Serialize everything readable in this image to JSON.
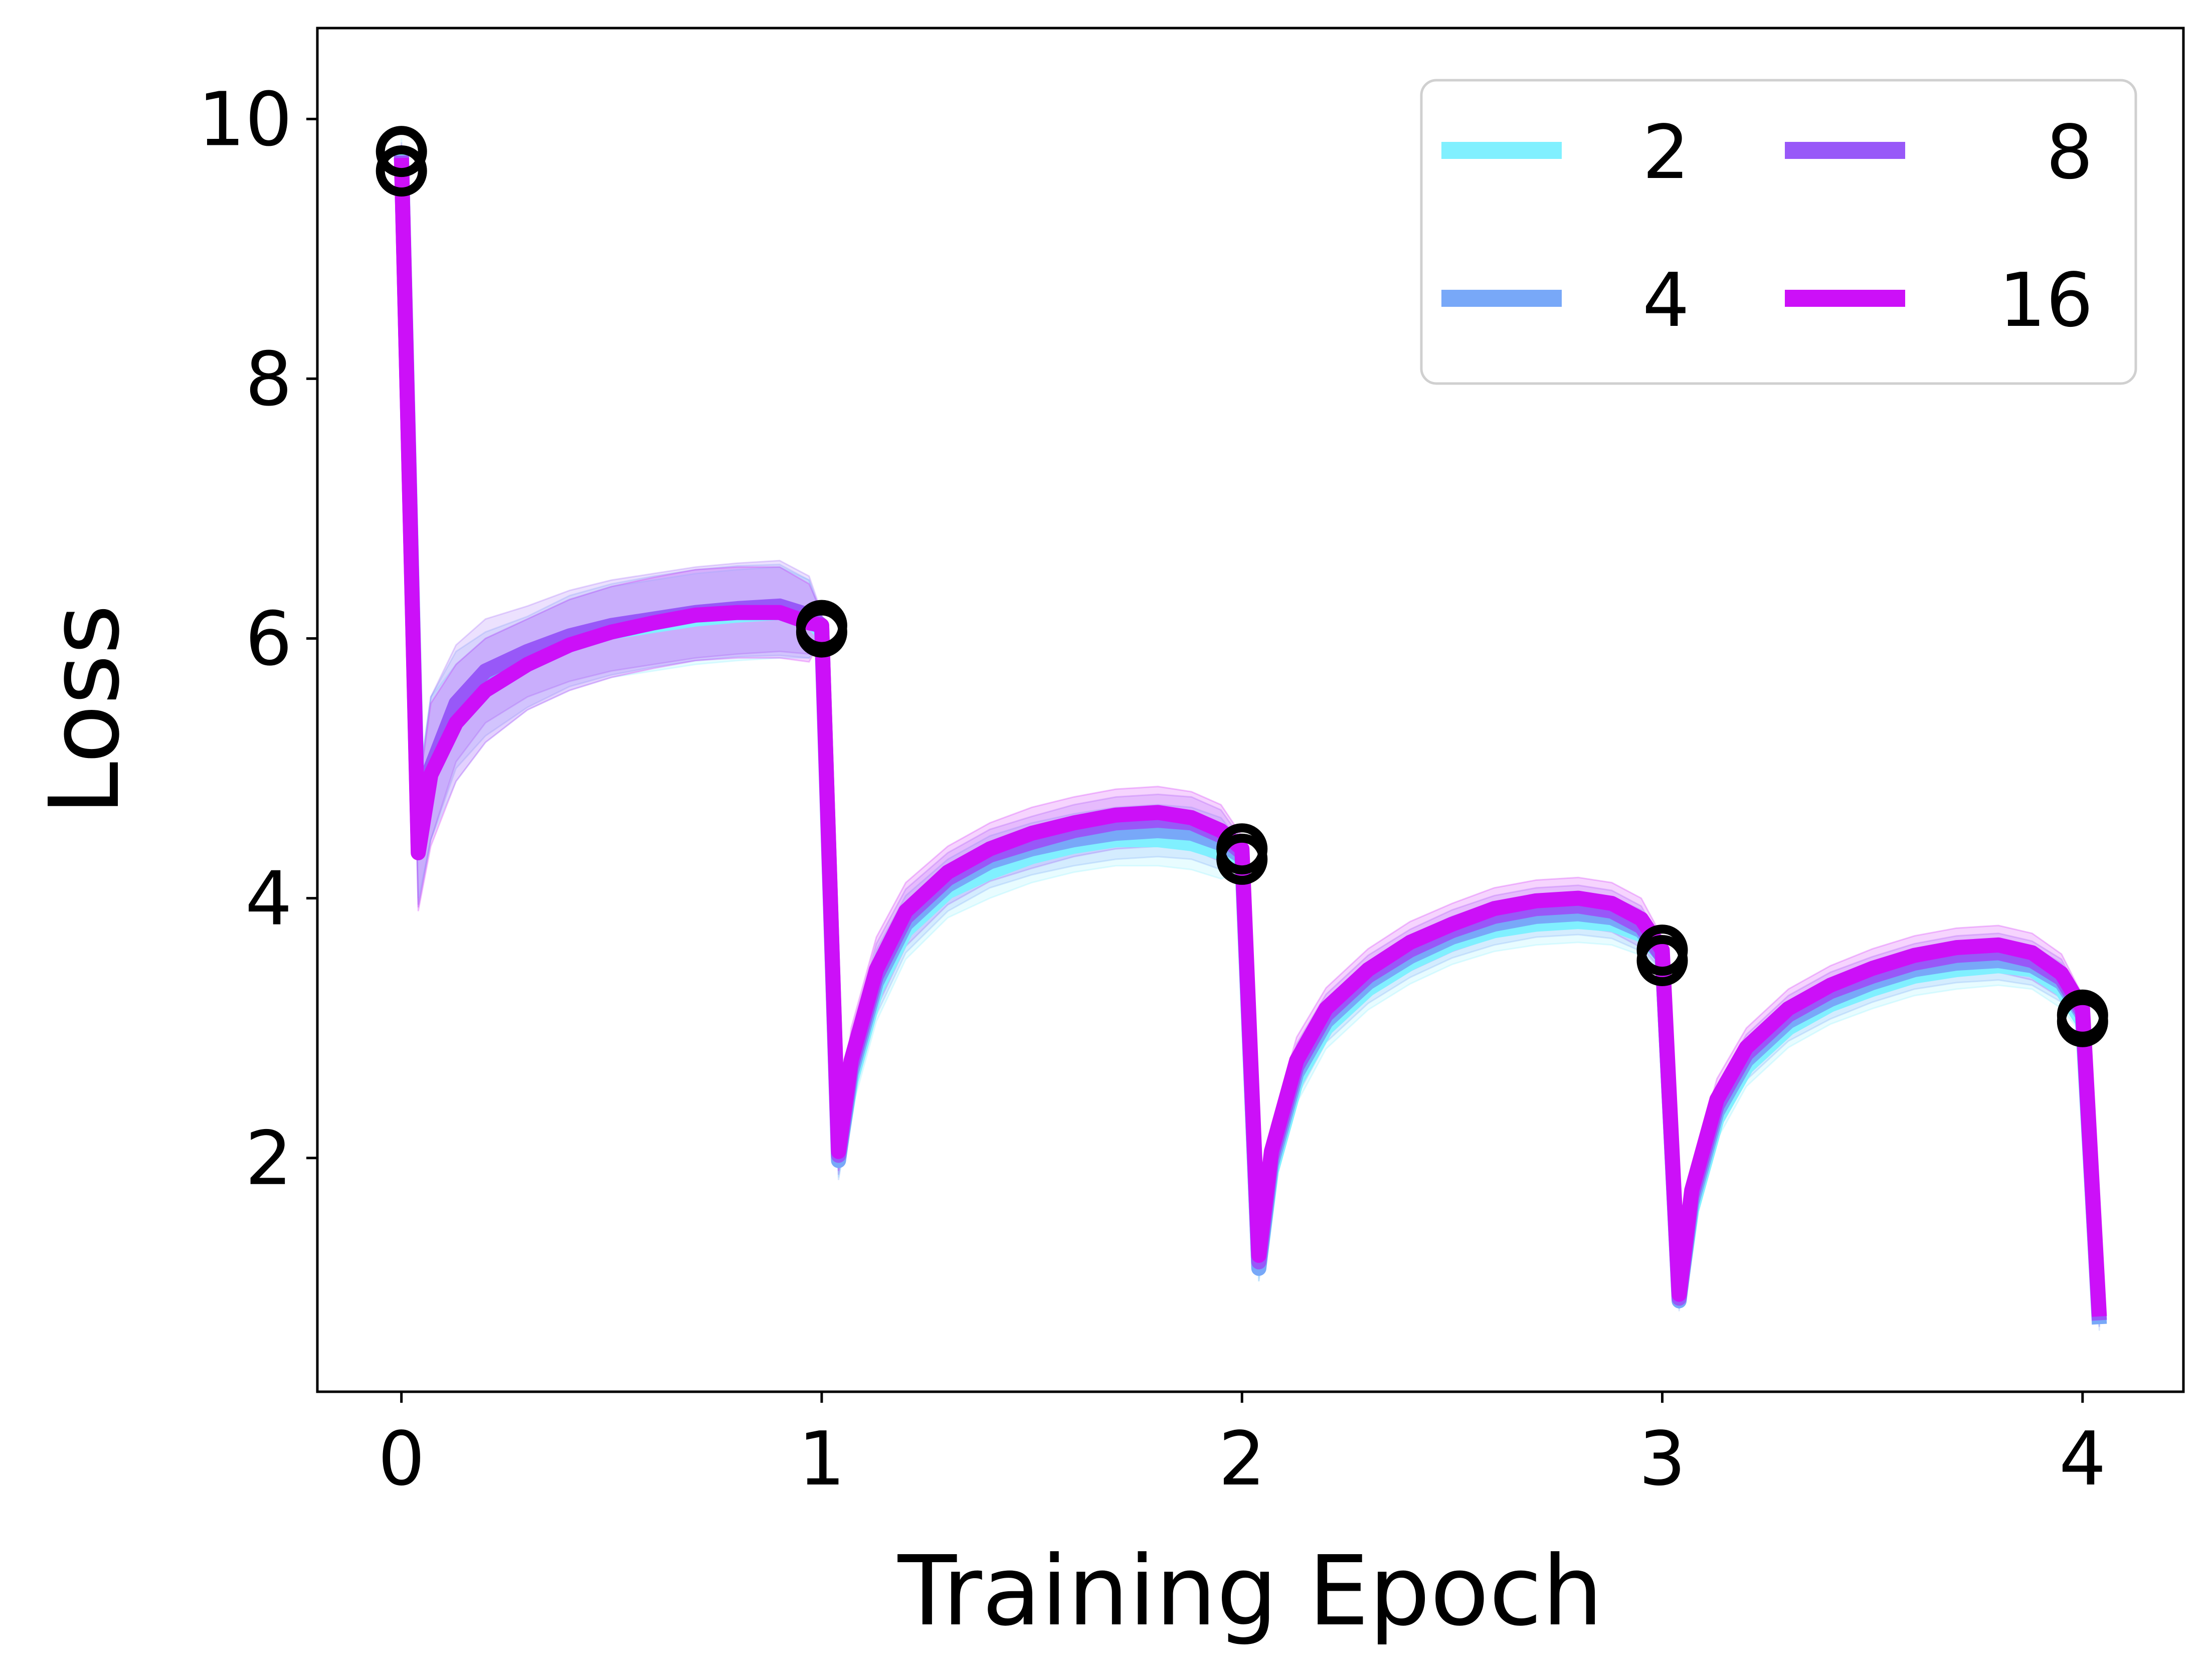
{
  "chart_data": {
    "type": "line",
    "title": "",
    "xlabel": "Training Epoch",
    "ylabel": "Loss",
    "xlim": [
      -0.2,
      4.24
    ],
    "ylim": [
      0.2,
      10.7
    ],
    "xticks": [
      0,
      1,
      2,
      3,
      4
    ],
    "yticks": [
      2,
      4,
      6,
      8,
      10
    ],
    "grid": false,
    "legend": {
      "placement": "top-right",
      "columns": 2
    },
    "x": [
      0,
      0.04,
      0.07,
      0.13,
      0.2,
      0.3,
      0.4,
      0.5,
      0.6,
      0.7,
      0.8,
      0.9,
      0.97,
      1.0,
      1.04,
      1.07,
      1.13,
      1.2,
      1.3,
      1.4,
      1.5,
      1.6,
      1.7,
      1.8,
      1.88,
      1.95,
      2.0,
      2.04,
      2.07,
      2.13,
      2.2,
      2.3,
      2.4,
      2.5,
      2.6,
      2.7,
      2.8,
      2.88,
      2.95,
      3.0,
      3.04,
      3.07,
      3.13,
      3.2,
      3.3,
      3.4,
      3.5,
      3.6,
      3.7,
      3.8,
      3.88,
      3.95,
      4.0,
      4.04
    ],
    "series": [
      {
        "name": "2",
        "color": "#80f0ff",
        "values": [
          9.75,
          4.45,
          5.0,
          5.35,
          5.6,
          5.8,
          5.95,
          6.05,
          6.1,
          6.15,
          6.18,
          6.2,
          6.15,
          6.05,
          2.0,
          2.6,
          3.3,
          3.75,
          4.05,
          4.2,
          4.32,
          4.4,
          4.45,
          4.45,
          4.42,
          4.35,
          4.3,
          1.15,
          1.9,
          2.6,
          3.0,
          3.3,
          3.5,
          3.65,
          3.75,
          3.8,
          3.82,
          3.8,
          3.72,
          3.55,
          0.92,
          1.6,
          2.3,
          2.7,
          3.0,
          3.18,
          3.3,
          3.4,
          3.45,
          3.48,
          3.45,
          3.3,
          3.05,
          0.75
        ]
      },
      {
        "name": "4",
        "color": "#78a8f8",
        "values": [
          9.7,
          4.4,
          5.0,
          5.45,
          5.65,
          5.82,
          5.98,
          6.07,
          6.13,
          6.18,
          6.21,
          6.22,
          6.15,
          6.08,
          1.98,
          2.65,
          3.35,
          3.8,
          4.1,
          4.28,
          4.38,
          4.45,
          4.5,
          4.52,
          4.5,
          4.42,
          4.32,
          1.15,
          1.95,
          2.65,
          3.05,
          3.35,
          3.55,
          3.7,
          3.8,
          3.86,
          3.88,
          3.85,
          3.75,
          3.55,
          0.9,
          1.65,
          2.35,
          2.75,
          3.05,
          3.22,
          3.35,
          3.45,
          3.5,
          3.52,
          3.48,
          3.35,
          3.1,
          0.72
        ]
      },
      {
        "name": "8",
        "color": "#9858f8",
        "values": [
          9.72,
          4.38,
          5.0,
          5.5,
          5.75,
          5.9,
          6.02,
          6.1,
          6.15,
          6.2,
          6.23,
          6.25,
          6.18,
          6.1,
          2.02,
          2.7,
          3.4,
          3.85,
          4.15,
          4.33,
          4.43,
          4.52,
          4.58,
          4.6,
          4.58,
          4.48,
          4.35,
          1.2,
          2.0,
          2.7,
          3.1,
          3.4,
          3.6,
          3.75,
          3.86,
          3.92,
          3.94,
          3.9,
          3.78,
          3.55,
          0.92,
          1.7,
          2.4,
          2.8,
          3.1,
          3.28,
          3.4,
          3.5,
          3.56,
          3.58,
          3.52,
          3.38,
          3.12,
          0.75
        ]
      },
      {
        "name": "16",
        "color": "#cc10f8",
        "values": [
          9.7,
          4.35,
          4.95,
          5.35,
          5.6,
          5.8,
          5.95,
          6.05,
          6.12,
          6.18,
          6.2,
          6.2,
          6.12,
          6.1,
          2.05,
          2.75,
          3.45,
          3.9,
          4.2,
          4.38,
          4.5,
          4.58,
          4.64,
          4.66,
          4.62,
          4.52,
          4.38,
          1.25,
          2.05,
          2.75,
          3.15,
          3.45,
          3.66,
          3.8,
          3.92,
          3.98,
          4.0,
          3.96,
          3.84,
          3.6,
          0.95,
          1.75,
          2.45,
          2.85,
          3.15,
          3.33,
          3.46,
          3.56,
          3.62,
          3.64,
          3.58,
          3.42,
          3.15,
          0.78
        ]
      }
    ],
    "band_halfwidth": [
      0.1,
      0.45,
      0.55,
      0.45,
      0.4,
      0.35,
      0.35,
      0.35,
      0.35,
      0.35,
      0.35,
      0.35,
      0.3,
      0.1,
      0.15,
      0.25,
      0.25,
      0.22,
      0.2,
      0.2,
      0.2,
      0.2,
      0.2,
      0.2,
      0.2,
      0.2,
      0.1,
      0.1,
      0.2,
      0.18,
      0.16,
      0.16,
      0.16,
      0.16,
      0.16,
      0.16,
      0.16,
      0.16,
      0.16,
      0.1,
      0.08,
      0.15,
      0.16,
      0.15,
      0.15,
      0.15,
      0.15,
      0.15,
      0.15,
      0.15,
      0.15,
      0.15,
      0.1,
      0.05
    ],
    "markers": {
      "style": "open-circle",
      "color": "#000000",
      "points": [
        {
          "x": 0,
          "y": 9.75
        },
        {
          "x": 0,
          "y": 9.6
        },
        {
          "x": 1,
          "y": 6.1
        },
        {
          "x": 1,
          "y": 6.05
        },
        {
          "x": 2,
          "y": 4.38
        },
        {
          "x": 2,
          "y": 4.3
        },
        {
          "x": 3,
          "y": 3.6
        },
        {
          "x": 3,
          "y": 3.52
        },
        {
          "x": 4,
          "y": 3.1
        },
        {
          "x": 4,
          "y": 3.05
        }
      ]
    }
  }
}
